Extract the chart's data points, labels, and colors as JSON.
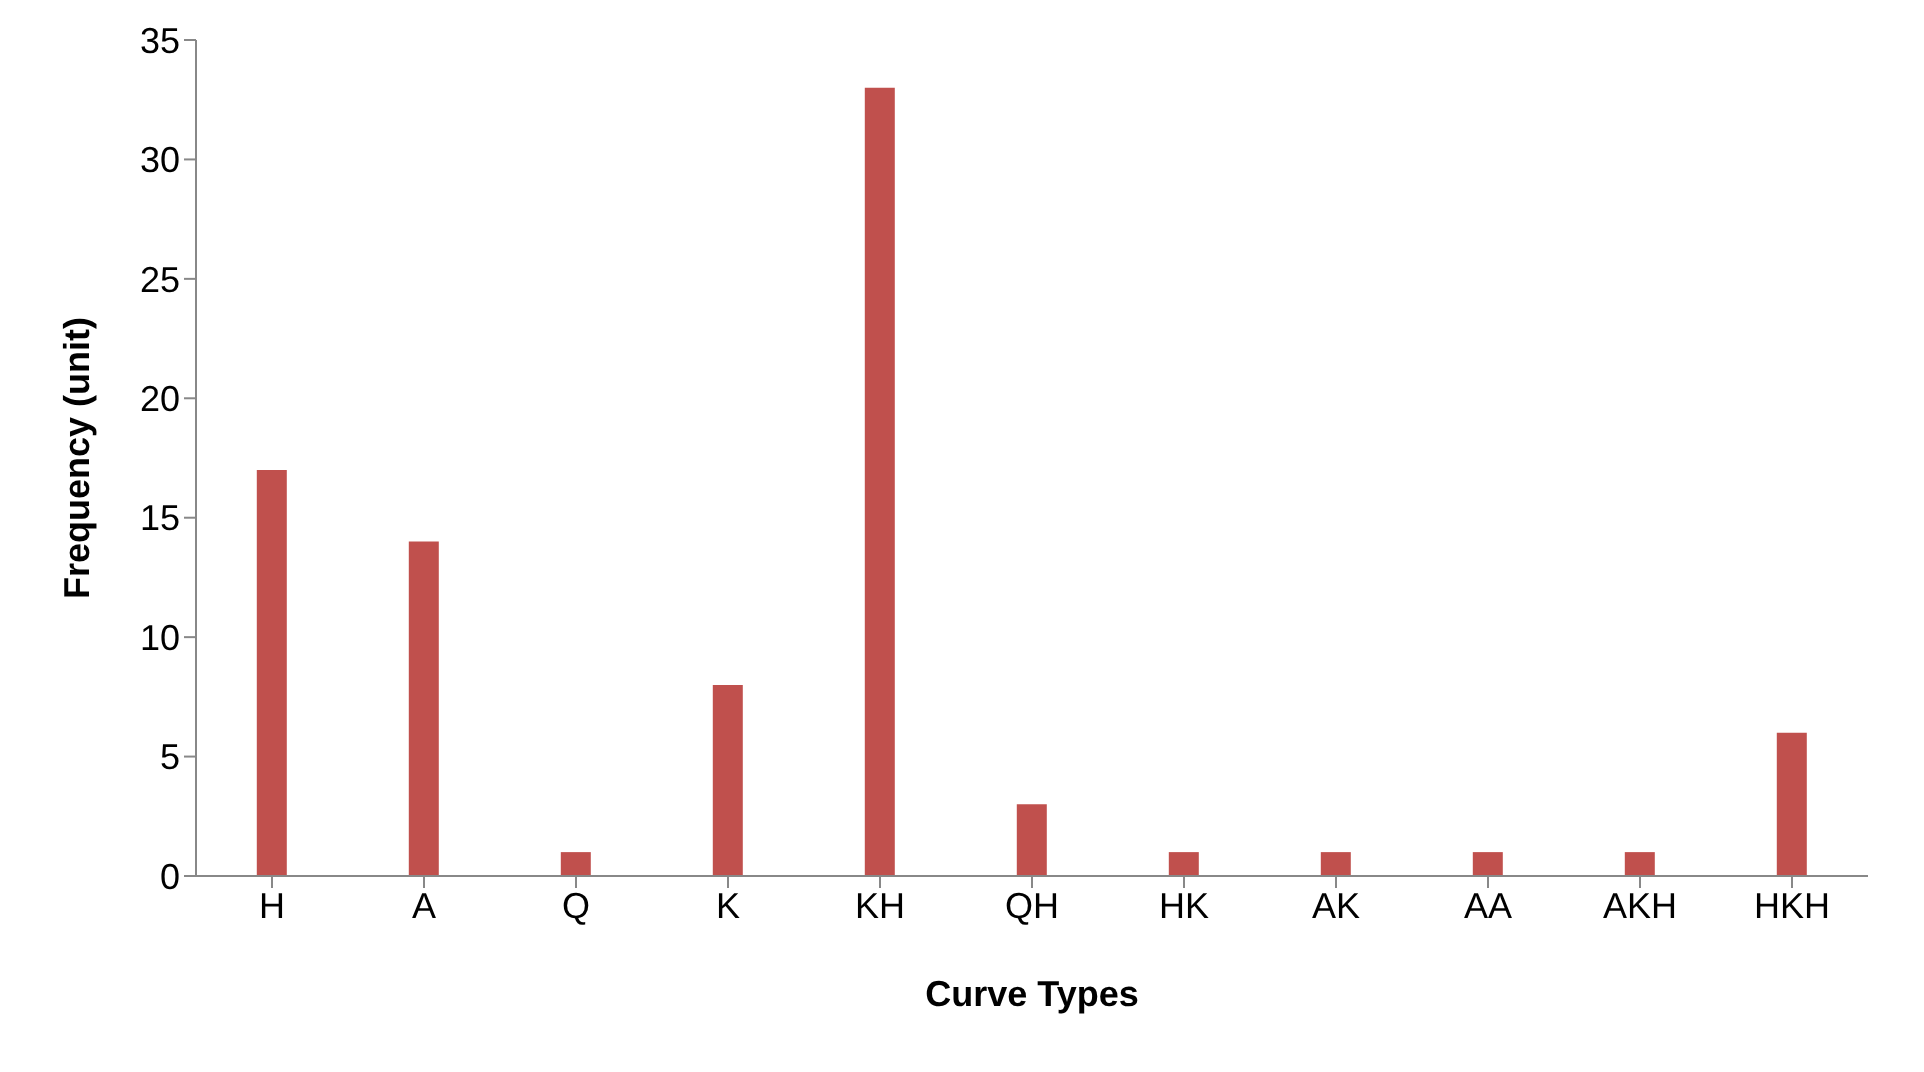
{
  "chart_data": {
    "type": "bar",
    "xlabel": "Curve Types",
    "ylabel": "Frequency (unit)",
    "categories": [
      "H",
      "A",
      "Q",
      "K",
      "KH",
      "QH",
      "HK",
      "AK",
      "AA",
      "AKH",
      "HKH"
    ],
    "values": [
      17,
      14,
      1,
      8,
      33,
      3,
      1,
      1,
      1,
      1,
      6
    ],
    "color": "#c0504d",
    "ylim": [
      0,
      35
    ],
    "yticks": [
      0,
      5,
      10,
      15,
      20,
      25,
      30,
      35
    ],
    "grid": false
  }
}
